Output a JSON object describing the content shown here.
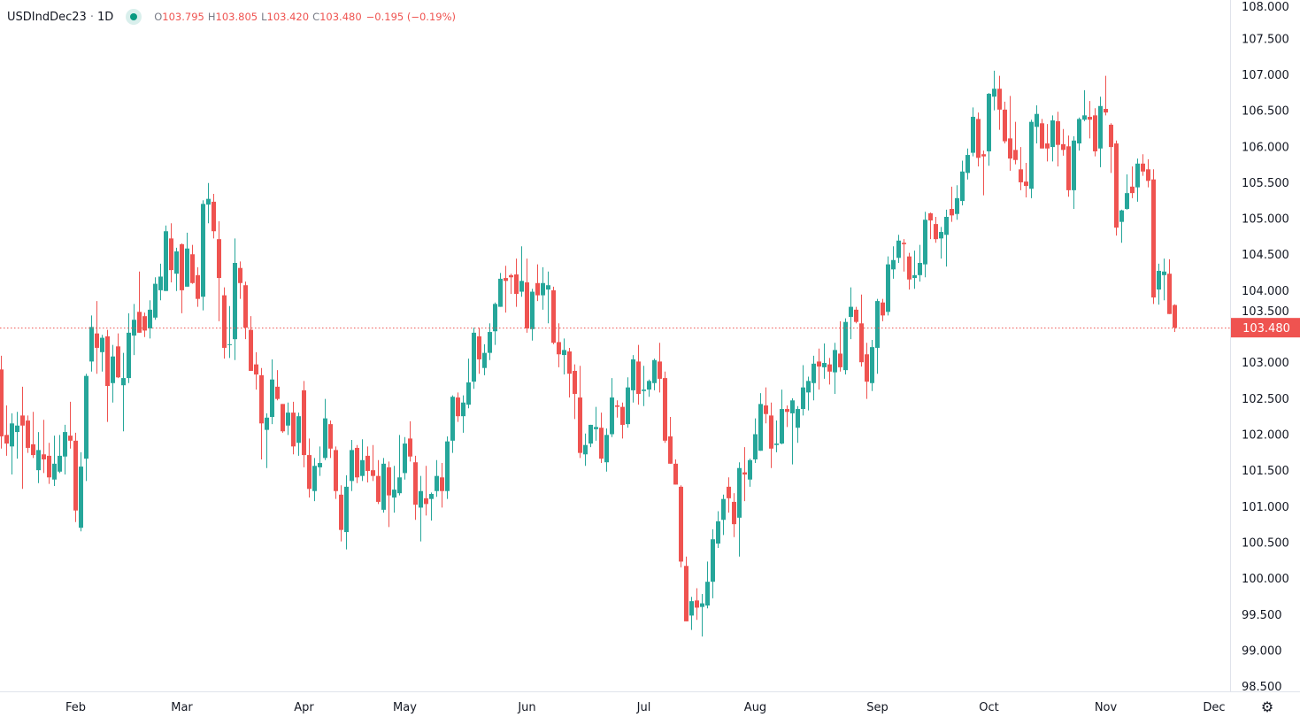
{
  "legend": {
    "symbol": "USDIndDec23",
    "separator": "·",
    "interval": "1D",
    "open_label": "O",
    "open": "103.795",
    "high_label": "H",
    "high": "103.805",
    "low_label": "L",
    "low": "103.420",
    "close_label": "C",
    "close": "103.480",
    "change": "−0.195 (−0.19%)"
  },
  "colors": {
    "up": "#26a69a",
    "down": "#ef5350",
    "last_price": "#ef5350",
    "axis_text": "#131722",
    "axis_line": "#e0e3eb"
  },
  "settings_icon": "gear-icon",
  "chart_data": {
    "type": "candlestick",
    "title": "",
    "xlabel": "",
    "ylabel": "",
    "ylim": [
      98.427,
      108.033
    ],
    "grid": false,
    "y_ticks": [
      "98.500",
      "99.000",
      "99.500",
      "100.000",
      "100.500",
      "101.000",
      "101.500",
      "102.000",
      "102.500",
      "103.000",
      "103.500",
      "104.000",
      "104.500",
      "105.000",
      "105.500",
      "106.000",
      "106.500",
      "107.000",
      "107.500",
      "108.000"
    ],
    "x_ticks": [
      {
        "label": "Feb",
        "index": 14
      },
      {
        "label": "Mar",
        "index": 34
      },
      {
        "label": "Apr",
        "index": 57
      },
      {
        "label": "May",
        "index": 76
      },
      {
        "label": "Jun",
        "index": 99
      },
      {
        "label": "Jul",
        "index": 121
      },
      {
        "label": "Aug",
        "index": 142
      },
      {
        "label": "Sep",
        "index": 165
      },
      {
        "label": "Oct",
        "index": 186
      },
      {
        "label": "Nov",
        "index": 208
      },
      {
        "label": "Dec",
        "index": 230
      }
    ],
    "last_price": 103.48,
    "last_price_label": "103.480",
    "ohlc_fields": [
      "open",
      "high",
      "low",
      "close"
    ],
    "candles": [
      [
        102.9,
        103.09,
        101.8,
        101.97
      ],
      [
        101.99,
        102.4,
        101.7,
        101.87
      ],
      [
        101.83,
        102.29,
        101.44,
        102.15
      ],
      [
        102.03,
        102.31,
        101.66,
        102.12
      ],
      [
        102.26,
        102.66,
        101.24,
        102.12
      ],
      [
        102.19,
        102.26,
        101.74,
        101.81
      ],
      [
        101.86,
        102.31,
        101.67,
        101.71
      ],
      [
        101.5,
        102.03,
        101.32,
        101.78
      ],
      [
        101.72,
        102.2,
        101.46,
        101.65
      ],
      [
        101.7,
        101.88,
        101.31,
        101.4
      ],
      [
        101.37,
        101.98,
        101.28,
        101.59
      ],
      [
        101.48,
        101.99,
        101.46,
        101.7
      ],
      [
        101.69,
        102.13,
        101.44,
        102.03
      ],
      [
        101.98,
        102.45,
        101.8,
        101.91
      ],
      [
        101.91,
        102.02,
        100.78,
        100.94
      ],
      [
        100.7,
        101.75,
        100.65,
        101.55
      ],
      [
        101.66,
        102.84,
        101.35,
        102.81
      ],
      [
        103.01,
        103.65,
        102.87,
        103.49
      ],
      [
        103.4,
        103.85,
        102.84,
        103.2
      ],
      [
        103.14,
        103.38,
        102.87,
        103.34
      ],
      [
        103.36,
        103.45,
        102.17,
        102.67
      ],
      [
        102.71,
        103.24,
        102.44,
        103.08
      ],
      [
        103.22,
        103.4,
        102.78,
        102.79
      ],
      [
        102.68,
        103.13,
        102.04,
        102.78
      ],
      [
        102.78,
        103.68,
        102.71,
        103.41
      ],
      [
        103.37,
        103.81,
        103.1,
        103.59
      ],
      [
        103.7,
        104.26,
        103.41,
        103.41
      ],
      [
        103.64,
        103.69,
        103.35,
        103.44
      ],
      [
        103.47,
        103.86,
        103.33,
        103.73
      ],
      [
        103.62,
        104.18,
        103.59,
        104.09
      ],
      [
        104.0,
        104.37,
        103.86,
        104.19
      ],
      [
        103.99,
        104.9,
        103.99,
        104.82
      ],
      [
        104.72,
        104.93,
        104.11,
        104.28
      ],
      [
        104.23,
        104.59,
        103.99,
        104.54
      ],
      [
        104.64,
        104.65,
        103.68,
        104.0
      ],
      [
        104.05,
        104.8,
        104.05,
        104.58
      ],
      [
        104.5,
        104.63,
        104.09,
        104.1
      ],
      [
        104.21,
        104.32,
        103.77,
        103.88
      ],
      [
        103.91,
        105.25,
        103.72,
        105.2
      ],
      [
        105.19,
        105.49,
        104.93,
        105.27
      ],
      [
        105.23,
        105.34,
        104.72,
        104.82
      ],
      [
        104.71,
        104.96,
        103.57,
        104.17
      ],
      [
        103.93,
        104.04,
        103.05,
        103.2
      ],
      [
        103.24,
        103.78,
        103.06,
        103.25
      ],
      [
        103.32,
        104.72,
        103.03,
        104.38
      ],
      [
        104.31,
        104.4,
        103.88,
        104.1
      ],
      [
        104.07,
        104.12,
        103.32,
        103.48
      ],
      [
        103.45,
        103.64,
        102.88,
        102.88
      ],
      [
        102.97,
        103.14,
        102.62,
        102.83
      ],
      [
        102.82,
        102.92,
        101.65,
        102.15
      ],
      [
        102.06,
        102.29,
        101.53,
        102.23
      ],
      [
        102.24,
        103.04,
        102.14,
        102.76
      ],
      [
        102.66,
        102.89,
        102.47,
        102.49
      ],
      [
        102.42,
        102.42,
        102.02,
        102.04
      ],
      [
        102.12,
        102.44,
        101.99,
        102.3
      ],
      [
        102.3,
        102.45,
        101.72,
        101.83
      ],
      [
        101.88,
        102.3,
        101.7,
        102.25
      ],
      [
        102.61,
        102.74,
        101.54,
        101.71
      ],
      [
        101.71,
        101.94,
        101.12,
        101.24
      ],
      [
        101.21,
        101.67,
        101.07,
        101.56
      ],
      [
        101.54,
        101.83,
        101.42,
        101.6
      ],
      [
        101.67,
        102.49,
        101.64,
        102.22
      ],
      [
        102.14,
        102.19,
        101.67,
        101.8
      ],
      [
        101.78,
        101.83,
        101.1,
        101.21
      ],
      [
        101.16,
        101.29,
        100.51,
        100.67
      ],
      [
        100.64,
        101.43,
        100.4,
        101.27
      ],
      [
        101.35,
        101.92,
        101.21,
        101.78
      ],
      [
        101.81,
        101.85,
        101.32,
        101.4
      ],
      [
        101.42,
        101.93,
        101.35,
        101.64
      ],
      [
        101.7,
        101.83,
        101.33,
        101.49
      ],
      [
        101.5,
        101.85,
        101.35,
        101.42
      ],
      [
        101.42,
        101.64,
        101.03,
        101.06
      ],
      [
        100.95,
        101.67,
        100.91,
        101.59
      ],
      [
        101.54,
        101.62,
        100.71,
        101.15
      ],
      [
        101.12,
        101.56,
        100.91,
        101.23
      ],
      [
        101.18,
        101.99,
        101.15,
        101.4
      ],
      [
        101.46,
        101.96,
        101.37,
        101.87
      ],
      [
        101.94,
        102.18,
        101.62,
        101.69
      ],
      [
        101.61,
        101.7,
        100.81,
        101.02
      ],
      [
        100.98,
        101.42,
        100.51,
        101.21
      ],
      [
        101.11,
        101.56,
        100.87,
        101.03
      ],
      [
        101.1,
        101.19,
        100.8,
        101.17
      ],
      [
        101.21,
        101.64,
        101.13,
        101.42
      ],
      [
        101.4,
        101.6,
        100.98,
        101.21
      ],
      [
        101.21,
        101.97,
        101.1,
        101.9
      ],
      [
        101.91,
        102.54,
        101.74,
        102.52
      ],
      [
        102.51,
        102.58,
        102.17,
        102.25
      ],
      [
        102.25,
        102.54,
        102.02,
        102.44
      ],
      [
        102.41,
        103.05,
        102.36,
        102.72
      ],
      [
        102.73,
        103.48,
        102.63,
        103.41
      ],
      [
        103.36,
        103.48,
        102.84,
        103.04
      ],
      [
        102.92,
        103.25,
        102.82,
        103.13
      ],
      [
        103.13,
        103.54,
        103.03,
        103.42
      ],
      [
        103.43,
        103.83,
        103.24,
        103.81
      ],
      [
        103.77,
        104.24,
        103.77,
        104.16
      ],
      [
        104.17,
        104.34,
        103.69,
        104.13
      ],
      [
        104.21,
        104.23,
        103.95,
        104.18
      ],
      [
        104.22,
        104.44,
        103.77,
        103.95
      ],
      [
        103.98,
        104.61,
        103.91,
        104.13
      ],
      [
        104.11,
        104.44,
        103.41,
        103.47
      ],
      [
        103.46,
        104.02,
        103.3,
        103.98
      ],
      [
        104.1,
        104.36,
        103.85,
        103.93
      ],
      [
        103.93,
        104.32,
        103.73,
        104.1
      ],
      [
        104.01,
        104.26,
        103.54,
        104.07
      ],
      [
        104.0,
        104.05,
        103.25,
        103.27
      ],
      [
        103.28,
        103.54,
        102.93,
        103.11
      ],
      [
        103.1,
        103.33,
        102.83,
        103.17
      ],
      [
        103.15,
        103.2,
        102.51,
        102.84
      ],
      [
        102.88,
        102.97,
        102.21,
        102.56
      ],
      [
        102.51,
        102.95,
        101.67,
        101.74
      ],
      [
        101.72,
        102.01,
        101.56,
        101.85
      ],
      [
        101.87,
        102.13,
        101.82,
        102.13
      ],
      [
        102.07,
        102.38,
        101.91,
        102.1
      ],
      [
        102.09,
        102.3,
        101.6,
        101.66
      ],
      [
        101.61,
        102.08,
        101.48,
        101.99
      ],
      [
        102.0,
        102.78,
        101.96,
        102.51
      ],
      [
        102.4,
        102.47,
        102.23,
        102.38
      ],
      [
        102.38,
        102.44,
        101.94,
        102.13
      ],
      [
        102.14,
        102.79,
        102.09,
        102.65
      ],
      [
        102.61,
        103.1,
        102.44,
        103.04
      ],
      [
        103.01,
        103.24,
        102.41,
        102.56
      ],
      [
        102.6,
        102.95,
        102.39,
        102.62
      ],
      [
        102.62,
        102.76,
        102.52,
        102.74
      ],
      [
        102.71,
        103.05,
        102.61,
        103.03
      ],
      [
        103.01,
        103.27,
        102.58,
        102.77
      ],
      [
        102.78,
        102.87,
        101.88,
        101.91
      ],
      [
        101.97,
        102.24,
        101.59,
        101.59
      ],
      [
        101.59,
        101.65,
        101.3,
        101.3
      ],
      [
        101.27,
        101.29,
        100.15,
        100.23
      ],
      [
        100.17,
        100.3,
        99.4,
        99.4
      ],
      [
        99.48,
        99.74,
        99.28,
        99.68
      ],
      [
        99.69,
        99.86,
        99.42,
        99.59
      ],
      [
        99.6,
        99.78,
        99.19,
        99.65
      ],
      [
        99.62,
        100.23,
        99.58,
        99.95
      ],
      [
        99.95,
        100.68,
        99.72,
        100.54
      ],
      [
        100.48,
        100.93,
        100.42,
        100.79
      ],
      [
        100.81,
        101.16,
        100.6,
        101.1
      ],
      [
        101.27,
        101.4,
        100.91,
        101.11
      ],
      [
        101.06,
        101.18,
        100.57,
        100.75
      ],
      [
        100.84,
        101.61,
        100.3,
        101.53
      ],
      [
        101.47,
        101.82,
        101.07,
        101.44
      ],
      [
        101.37,
        101.66,
        101.27,
        101.64
      ],
      [
        101.65,
        102.22,
        101.6,
        102.0
      ],
      [
        101.77,
        102.57,
        101.77,
        102.42
      ],
      [
        102.4,
        102.65,
        102.15,
        102.28
      ],
      [
        102.26,
        102.44,
        101.53,
        101.8
      ],
      [
        101.85,
        102.19,
        101.75,
        101.87
      ],
      [
        101.87,
        102.62,
        101.86,
        102.35
      ],
      [
        102.35,
        102.4,
        102.1,
        102.31
      ],
      [
        102.29,
        102.5,
        101.58,
        102.47
      ],
      [
        102.09,
        102.39,
        101.88,
        102.35
      ],
      [
        102.35,
        102.96,
        102.26,
        102.65
      ],
      [
        102.58,
        102.8,
        102.33,
        102.74
      ],
      [
        102.71,
        103.09,
        102.47,
        102.98
      ],
      [
        103.01,
        103.19,
        102.62,
        102.94
      ],
      [
        102.93,
        103.26,
        102.77,
        102.99
      ],
      [
        102.97,
        103.06,
        102.69,
        102.87
      ],
      [
        102.86,
        103.27,
        102.56,
        103.17
      ],
      [
        103.12,
        103.57,
        102.87,
        102.93
      ],
      [
        102.89,
        103.61,
        102.83,
        103.56
      ],
      [
        103.63,
        104.04,
        103.32,
        103.77
      ],
      [
        103.73,
        103.77,
        103.54,
        103.56
      ],
      [
        103.54,
        103.94,
        102.94,
        103.0
      ],
      [
        103.11,
        103.27,
        102.49,
        102.73
      ],
      [
        102.71,
        103.31,
        102.6,
        103.21
      ],
      [
        103.2,
        103.88,
        102.84,
        103.85
      ],
      [
        103.83,
        103.88,
        103.57,
        103.65
      ],
      [
        103.7,
        104.47,
        103.65,
        104.36
      ],
      [
        104.29,
        104.61,
        104.16,
        104.42
      ],
      [
        104.45,
        104.77,
        104.38,
        104.69
      ],
      [
        104.66,
        104.71,
        104.26,
        104.64
      ],
      [
        104.47,
        104.52,
        104.01,
        104.15
      ],
      [
        104.17,
        104.55,
        104.02,
        104.21
      ],
      [
        104.21,
        104.63,
        104.12,
        104.38
      ],
      [
        104.36,
        105.09,
        104.18,
        104.98
      ],
      [
        105.07,
        105.08,
        104.71,
        104.97
      ],
      [
        104.92,
        105.02,
        104.66,
        104.71
      ],
      [
        104.72,
        104.88,
        104.44,
        104.81
      ],
      [
        104.77,
        105.12,
        104.33,
        105.02
      ],
      [
        105.13,
        105.44,
        104.95,
        105.04
      ],
      [
        105.06,
        105.46,
        104.98,
        105.28
      ],
      [
        105.24,
        105.8,
        105.18,
        105.65
      ],
      [
        105.63,
        105.97,
        105.54,
        105.88
      ],
      [
        105.91,
        106.54,
        105.86,
        106.41
      ],
      [
        106.38,
        106.47,
        105.72,
        105.84
      ],
      [
        105.89,
        105.94,
        105.32,
        105.86
      ],
      [
        105.93,
        106.74,
        105.73,
        106.73
      ],
      [
        106.69,
        107.05,
        106.5,
        106.8
      ],
      [
        106.8,
        106.98,
        106.23,
        106.51
      ],
      [
        106.51,
        106.62,
        106.04,
        106.07
      ],
      [
        106.11,
        106.7,
        105.66,
        105.83
      ],
      [
        105.95,
        106.34,
        105.75,
        105.81
      ],
      [
        105.68,
        105.99,
        105.39,
        105.5
      ],
      [
        105.51,
        105.77,
        105.29,
        105.45
      ],
      [
        105.41,
        106.37,
        105.28,
        106.34
      ],
      [
        106.27,
        106.57,
        106.04,
        106.45
      ],
      [
        106.32,
        106.38,
        105.97,
        105.97
      ],
      [
        106.04,
        106.31,
        105.79,
        105.97
      ],
      [
        105.99,
        106.43,
        105.79,
        106.36
      ],
      [
        106.35,
        106.48,
        105.72,
        106.02
      ],
      [
        106.03,
        106.24,
        105.87,
        105.95
      ],
      [
        106.0,
        106.15,
        105.3,
        105.39
      ],
      [
        105.39,
        106.14,
        105.13,
        106.08
      ],
      [
        106.04,
        106.4,
        105.94,
        106.38
      ],
      [
        106.37,
        106.78,
        106.35,
        106.43
      ],
      [
        106.41,
        106.63,
        106.11,
        106.37
      ],
      [
        106.43,
        106.53,
        105.86,
        105.93
      ],
      [
        105.97,
        106.69,
        105.71,
        106.56
      ],
      [
        106.52,
        106.98,
        106.43,
        106.47
      ],
      [
        106.3,
        106.32,
        105.63,
        105.99
      ],
      [
        106.04,
        106.08,
        104.76,
        104.87
      ],
      [
        104.95,
        105.12,
        104.66,
        105.11
      ],
      [
        105.13,
        105.61,
        105.12,
        105.35
      ],
      [
        105.44,
        105.72,
        105.28,
        105.35
      ],
      [
        105.43,
        105.83,
        105.23,
        105.76
      ],
      [
        105.76,
        105.89,
        105.59,
        105.65
      ],
      [
        105.68,
        105.82,
        105.43,
        105.52
      ],
      [
        105.54,
        105.68,
        103.81,
        103.9
      ],
      [
        104.01,
        104.37,
        103.8,
        104.27
      ],
      [
        104.21,
        104.44,
        103.86,
        104.26
      ],
      [
        104.23,
        104.43,
        103.67,
        103.67
      ],
      [
        103.795,
        103.805,
        103.42,
        103.48
      ]
    ]
  }
}
